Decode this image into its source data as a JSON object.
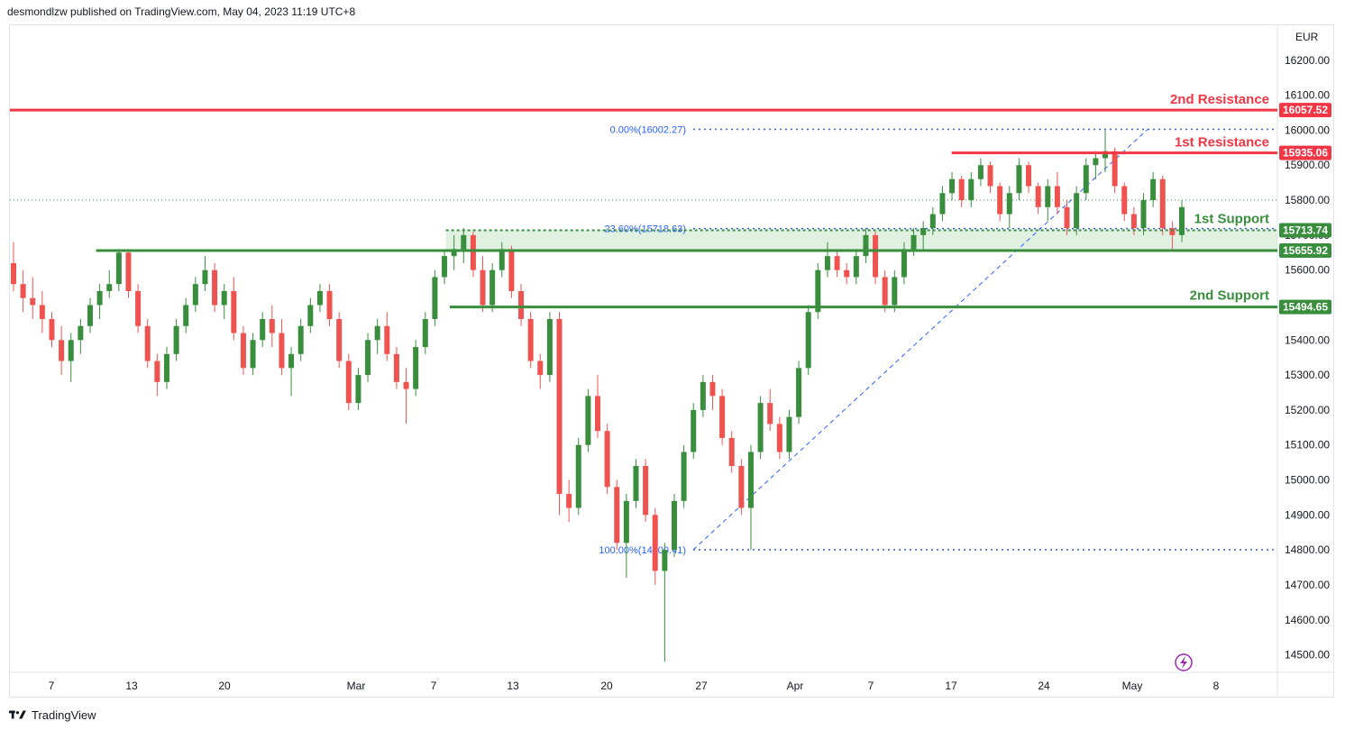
{
  "header": {
    "publisher": "desmondlzw published on TradingView.com, May 04, 2023 11:19 UTC+8"
  },
  "footer": {
    "brand": "TradingView",
    "logo_icon": "tradingview-logo-icon"
  },
  "colors": {
    "up": "#388e3c",
    "down": "#ef5350",
    "resistance": "#f23645",
    "support": "#388e3c",
    "fib": "#2962ff",
    "zone": "#c8e6c9"
  },
  "chart_data": {
    "type": "candlestick",
    "currency": "EUR",
    "ylim": [
      14450,
      16300
    ],
    "y_ticks": [
      14500,
      14600,
      14700,
      14800,
      14900,
      15000,
      15100,
      15200,
      15300,
      15400,
      15500,
      15600,
      15700,
      15800,
      15900,
      16000,
      16100,
      16200
    ],
    "y_tick_labels": [
      "14500.00",
      "14600.00",
      "14700.00",
      "14800.00",
      "14900.00",
      "15000.00",
      "15100.00",
      "15200.00",
      "15300.00",
      "15400.00",
      "15500.00",
      "15600.00",
      "15700.00",
      "15800.00",
      "15900.00",
      "16000.00",
      "16100.00",
      "16200.00"
    ],
    "x_tick_labels": [
      "7",
      "13",
      "20",
      "Mar",
      "7",
      "13",
      "20",
      "27",
      "Apr",
      "7",
      "17",
      "24",
      "May",
      "8"
    ],
    "current_price": 15800,
    "levels": [
      {
        "name": "2nd Resistance",
        "price_label": "16057.52",
        "value": 16057.52,
        "kind": "resistance",
        "x_start_frac": 0.0
      },
      {
        "name": "1st Resistance",
        "price_label": "15935.06",
        "value": 15935.06,
        "kind": "resistance",
        "x_start_frac": 0.743
      },
      {
        "name": "1st Support",
        "price_label": "15713.74",
        "value": 15713.74,
        "kind": "support-zone-top",
        "x_start_frac": 0.344
      },
      {
        "name": "",
        "price_label": "15655.92",
        "value": 15655.92,
        "kind": "support",
        "x_start_frac": 0.068
      },
      {
        "name": "2nd Support",
        "price_label": "15494.65",
        "value": 15494.65,
        "kind": "support",
        "x_start_frac": 0.347
      }
    ],
    "fibonacci": [
      {
        "label": "0.00%(16002.27)",
        "value": 16002.27
      },
      {
        "label": "23.60%(15718.63)",
        "value": 15718.63
      },
      {
        "label": "100.00%(14800.41)",
        "value": 14800.41
      }
    ],
    "trendline": {
      "from": 14800.41,
      "to": 16002.27
    },
    "candles": [
      [
        15620,
        15680,
        15540,
        15560
      ],
      [
        15560,
        15600,
        15480,
        15520
      ],
      [
        15520,
        15580,
        15460,
        15500
      ],
      [
        15500,
        15540,
        15420,
        15460
      ],
      [
        15460,
        15480,
        15380,
        15400
      ],
      [
        15400,
        15440,
        15300,
        15340
      ],
      [
        15340,
        15420,
        15280,
        15400
      ],
      [
        15400,
        15460,
        15360,
        15440
      ],
      [
        15440,
        15520,
        15420,
        15500
      ],
      [
        15500,
        15560,
        15460,
        15540
      ],
      [
        15540,
        15600,
        15520,
        15560
      ],
      [
        15560,
        15660,
        15540,
        15650
      ],
      [
        15650,
        15660,
        15520,
        15540
      ],
      [
        15540,
        15560,
        15420,
        15440
      ],
      [
        15440,
        15460,
        15320,
        15340
      ],
      [
        15340,
        15360,
        15240,
        15280
      ],
      [
        15280,
        15380,
        15260,
        15360
      ],
      [
        15360,
        15460,
        15340,
        15440
      ],
      [
        15440,
        15520,
        15420,
        15500
      ],
      [
        15500,
        15580,
        15480,
        15560
      ],
      [
        15560,
        15640,
        15540,
        15600
      ],
      [
        15600,
        15620,
        15480,
        15500
      ],
      [
        15500,
        15560,
        15460,
        15540
      ],
      [
        15540,
        15580,
        15400,
        15420
      ],
      [
        15420,
        15440,
        15300,
        15320
      ],
      [
        15320,
        15420,
        15300,
        15400
      ],
      [
        15400,
        15480,
        15380,
        15460
      ],
      [
        15460,
        15500,
        15380,
        15420
      ],
      [
        15420,
        15460,
        15300,
        15320
      ],
      [
        15320,
        15380,
        15240,
        15360
      ],
      [
        15360,
        15460,
        15340,
        15440
      ],
      [
        15440,
        15520,
        15420,
        15500
      ],
      [
        15500,
        15560,
        15480,
        15540
      ],
      [
        15540,
        15560,
        15440,
        15460
      ],
      [
        15460,
        15480,
        15320,
        15340
      ],
      [
        15340,
        15360,
        15200,
        15220
      ],
      [
        15220,
        15320,
        15200,
        15300
      ],
      [
        15300,
        15420,
        15280,
        15400
      ],
      [
        15400,
        15460,
        15360,
        15440
      ],
      [
        15440,
        15480,
        15340,
        15360
      ],
      [
        15360,
        15380,
        15260,
        15280
      ],
      [
        15280,
        15320,
        15160,
        15260
      ],
      [
        15260,
        15400,
        15240,
        15380
      ],
      [
        15380,
        15480,
        15360,
        15460
      ],
      [
        15460,
        15600,
        15440,
        15580
      ],
      [
        15580,
        15660,
        15560,
        15640
      ],
      [
        15640,
        15700,
        15600,
        15660
      ],
      [
        15660,
        15720,
        15620,
        15700
      ],
      [
        15700,
        15710,
        15580,
        15600
      ],
      [
        15600,
        15640,
        15480,
        15500
      ],
      [
        15500,
        15620,
        15480,
        15600
      ],
      [
        15600,
        15680,
        15580,
        15660
      ],
      [
        15660,
        15670,
        15520,
        15540
      ],
      [
        15540,
        15560,
        15440,
        15460
      ],
      [
        15460,
        15480,
        15320,
        15340
      ],
      [
        15340,
        15360,
        15260,
        15300
      ],
      [
        15300,
        15480,
        15280,
        15460
      ],
      [
        15460,
        15480,
        14900,
        14960
      ],
      [
        14960,
        15000,
        14880,
        14920
      ],
      [
        14920,
        15120,
        14900,
        15100
      ],
      [
        15100,
        15260,
        15080,
        15240
      ],
      [
        15240,
        15300,
        15120,
        15140
      ],
      [
        15140,
        15160,
        14960,
        14980
      ],
      [
        14980,
        15000,
        14800,
        14820
      ],
      [
        14820,
        14960,
        14720,
        14940
      ],
      [
        14940,
        15060,
        14920,
        15040
      ],
      [
        15040,
        15060,
        14880,
        14900
      ],
      [
        14900,
        14920,
        14700,
        14740
      ],
      [
        14740,
        14820,
        14480,
        14800
      ],
      [
        14800,
        14960,
        14780,
        14940
      ],
      [
        14940,
        15100,
        14920,
        15080
      ],
      [
        15080,
        15220,
        15060,
        15200
      ],
      [
        15200,
        15300,
        15180,
        15280
      ],
      [
        15280,
        15300,
        15200,
        15240
      ],
      [
        15240,
        15260,
        15100,
        15120
      ],
      [
        15120,
        15140,
        15020,
        15040
      ],
      [
        15040,
        15060,
        14900,
        14920
      ],
      [
        14920,
        15100,
        14800,
        15080
      ],
      [
        15080,
        15240,
        15060,
        15220
      ],
      [
        15220,
        15260,
        15140,
        15160
      ],
      [
        15160,
        15180,
        15060,
        15080
      ],
      [
        15080,
        15200,
        15060,
        15180
      ],
      [
        15180,
        15340,
        15160,
        15320
      ],
      [
        15320,
        15500,
        15300,
        15480
      ],
      [
        15480,
        15620,
        15460,
        15600
      ],
      [
        15600,
        15680,
        15580,
        15640
      ],
      [
        15640,
        15660,
        15580,
        15600
      ],
      [
        15600,
        15620,
        15560,
        15580
      ],
      [
        15580,
        15660,
        15560,
        15640
      ],
      [
        15640,
        15720,
        15620,
        15700
      ],
      [
        15700,
        15710,
        15560,
        15580
      ],
      [
        15580,
        15600,
        15480,
        15500
      ],
      [
        15500,
        15600,
        15480,
        15580
      ],
      [
        15580,
        15680,
        15560,
        15660
      ],
      [
        15660,
        15720,
        15640,
        15700
      ],
      [
        15700,
        15740,
        15660,
        15720
      ],
      [
        15720,
        15780,
        15700,
        15760
      ],
      [
        15760,
        15840,
        15740,
        15820
      ],
      [
        15820,
        15880,
        15800,
        15860
      ],
      [
        15860,
        15870,
        15780,
        15800
      ],
      [
        15800,
        15880,
        15780,
        15860
      ],
      [
        15860,
        15920,
        15840,
        15900
      ],
      [
        15900,
        15910,
        15820,
        15840
      ],
      [
        15840,
        15850,
        15740,
        15760
      ],
      [
        15760,
        15840,
        15720,
        15820
      ],
      [
        15820,
        15920,
        15800,
        15900
      ],
      [
        15900,
        15910,
        15820,
        15840
      ],
      [
        15840,
        15850,
        15760,
        15780
      ],
      [
        15780,
        15860,
        15740,
        15840
      ],
      [
        15840,
        15880,
        15760,
        15780
      ],
      [
        15780,
        15800,
        15700,
        15720
      ],
      [
        15720,
        15840,
        15700,
        15820
      ],
      [
        15820,
        15920,
        15800,
        15900
      ],
      [
        15900,
        15940,
        15860,
        15920
      ],
      [
        15920,
        16000,
        15880,
        15940
      ],
      [
        15940,
        15950,
        15820,
        15840
      ],
      [
        15840,
        15850,
        15740,
        15760
      ],
      [
        15760,
        15780,
        15700,
        15720
      ],
      [
        15720,
        15820,
        15700,
        15800
      ],
      [
        15800,
        15880,
        15780,
        15860
      ],
      [
        15860,
        15870,
        15700,
        15720
      ],
      [
        15720,
        15740,
        15660,
        15700
      ],
      [
        15700,
        15800,
        15680,
        15780
      ]
    ]
  }
}
